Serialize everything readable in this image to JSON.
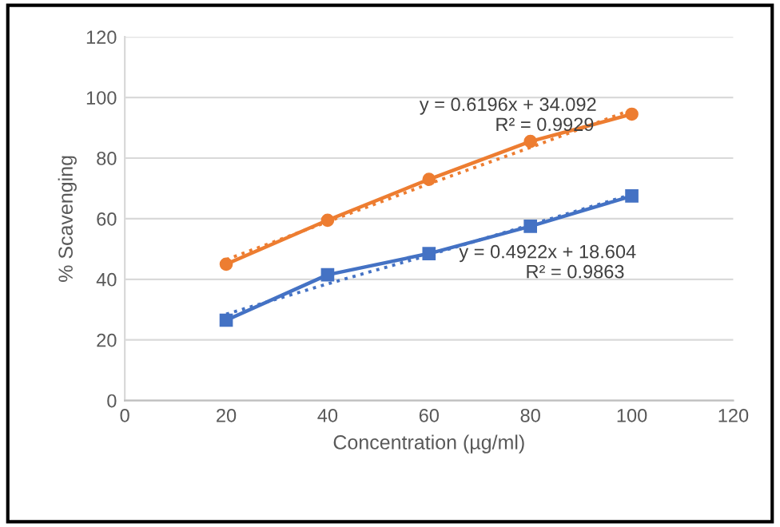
{
  "chart_data": {
    "type": "line",
    "xlabel": "Concentration (µg/ml)",
    "ylabel": "% Scavenging",
    "x": [
      20,
      40,
      60,
      80,
      100
    ],
    "series": [
      {
        "color": "#ed7d31",
        "values": [
          45,
          59.5,
          73,
          85.5,
          94.5
        ],
        "marker": "circle",
        "line_style": "solid"
      },
      {
        "color": "#4472c4",
        "values": [
          26.5,
          41.5,
          48.5,
          57.5,
          67.5
        ],
        "marker": "square",
        "line_style": "solid"
      },
      {
        "color": "#ed7d31",
        "values": [
          46.5,
          59,
          71.5,
          83.5,
          96
        ],
        "marker": "none",
        "line_style": "dotted"
      },
      {
        "color": "#4472c4",
        "values": [
          28.5,
          38.5,
          48,
          58,
          68
        ],
        "marker": "none",
        "line_style": "dotted"
      }
    ],
    "annotations": [
      "y = 0.6196x + 34.092",
      "R² = 0.9929",
      "y = 0.4922x + 18.604",
      "R² = 0.9863"
    ],
    "xlim": [
      0,
      120
    ],
    "xticks": [
      0,
      20,
      40,
      60,
      80,
      100,
      120
    ],
    "ylim": [
      0,
      120
    ],
    "yticks": [
      0,
      20,
      40,
      60,
      80,
      100,
      120
    ],
    "grid": "y",
    "legend": false
  }
}
